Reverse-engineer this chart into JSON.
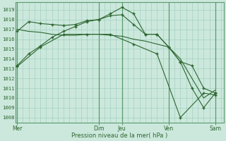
{
  "title": "Pression niveau de la mer( hPa )",
  "bg_color": "#cce8dc",
  "grid_color": "#99ccbb",
  "line_color": "#2d6630",
  "ylim": [
    1007.5,
    1019.8
  ],
  "yticks": [
    1008,
    1009,
    1010,
    1011,
    1012,
    1013,
    1014,
    1015,
    1016,
    1017,
    1018,
    1019
  ],
  "day_labels": [
    "Mer",
    "Dim",
    "Jeu",
    "Ven",
    "Sam"
  ],
  "day_positions": [
    0,
    14,
    18,
    26,
    34
  ],
  "xlim": [
    -0.3,
    35.5
  ],
  "series": [
    {
      "x": [
        0,
        2,
        4,
        6,
        8,
        10,
        12,
        14,
        16,
        18,
        20,
        22,
        24,
        26,
        28,
        30,
        32,
        34
      ],
      "y": [
        1013.3,
        1014.5,
        1015.3,
        1016.2,
        1016.8,
        1017.3,
        1017.8,
        1018.0,
        1018.6,
        1019.25,
        1018.6,
        1016.5,
        1016.5,
        1015.2,
        1013.7,
        1013.3,
        1011.0,
        1010.5
      ],
      "marker": "+"
    },
    {
      "x": [
        0,
        2,
        4,
        6,
        8,
        10,
        12,
        14,
        16,
        18,
        20,
        22,
        24,
        26,
        28,
        30,
        32,
        34
      ],
      "y": [
        1016.8,
        1017.8,
        1017.6,
        1017.5,
        1017.4,
        1017.5,
        1017.9,
        1018.0,
        1018.4,
        1018.5,
        1017.5,
        1016.5,
        1016.5,
        1015.2,
        1013.7,
        1011.0,
        1009.0,
        1010.5
      ],
      "marker": "+"
    },
    {
      "x": [
        0,
        2,
        4,
        6,
        8,
        10,
        12,
        14,
        16,
        18,
        20,
        22,
        24,
        26,
        28,
        30,
        32,
        34
      ],
      "y": [
        1017.0,
        1016.8,
        1016.7,
        1016.5,
        1016.4,
        1016.4,
        1016.5,
        1016.5,
        1016.4,
        1016.3,
        1016.0,
        1015.8,
        1015.5,
        1015.2,
        1014.0,
        1012.0,
        1010.0,
        1010.8
      ],
      "marker": null
    },
    {
      "x": [
        0,
        4,
        8,
        12,
        16,
        20,
        24,
        28,
        32,
        34
      ],
      "y": [
        1013.2,
        1015.2,
        1016.5,
        1016.5,
        1016.5,
        1015.5,
        1014.5,
        1008.0,
        1010.5,
        1010.3
      ],
      "marker": "+"
    }
  ]
}
